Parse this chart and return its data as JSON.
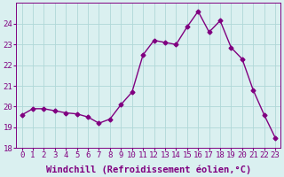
{
  "x": [
    0,
    1,
    2,
    3,
    4,
    5,
    6,
    7,
    8,
    9,
    10,
    11,
    12,
    13,
    14,
    15,
    16,
    17,
    18,
    19,
    20,
    21,
    22,
    23
  ],
  "y": [
    19.6,
    19.9,
    19.9,
    19.8,
    19.7,
    19.65,
    19.5,
    19.2,
    19.4,
    20.1,
    20.7,
    22.5,
    23.2,
    23.1,
    23.0,
    23.85,
    24.6,
    23.6,
    24.15,
    22.85,
    22.3,
    20.8,
    19.6,
    18.5
  ],
  "line_color": "#800080",
  "marker": "D",
  "markersize": 2.5,
  "linewidth": 1.0,
  "background_color": "#daf0f0",
  "grid_color": "#b0d8d8",
  "xlabel": "Windchill (Refroidissement éolien,°C)",
  "xlabel_fontsize": 7.5,
  "tick_fontsize": 6.5,
  "ylim": [
    18,
    25
  ],
  "xlim": [
    -0.5,
    23.5
  ],
  "yticks": [
    18,
    19,
    20,
    21,
    22,
    23,
    24
  ],
  "xticks": [
    0,
    1,
    2,
    3,
    4,
    5,
    6,
    7,
    8,
    9,
    10,
    11,
    12,
    13,
    14,
    15,
    16,
    17,
    18,
    19,
    20,
    21,
    22,
    23
  ]
}
